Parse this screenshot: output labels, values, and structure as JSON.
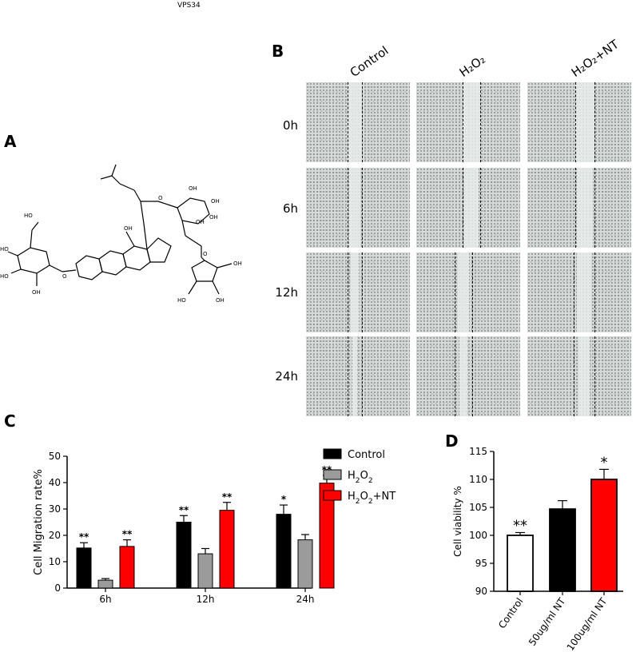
{
  "compound_name": "VPS34",
  "panels": {
    "a": "A",
    "b": "B",
    "c": "C",
    "d": "D"
  },
  "panel_b": {
    "columns": [
      "Control",
      "H₂O₂",
      "H₂O₂+NT"
    ],
    "rows": [
      "0h",
      "6h",
      "12h",
      "24h"
    ]
  },
  "chart_data": [
    {
      "type": "bar",
      "panel": "C",
      "categories": [
        "6h",
        "12h",
        "24h"
      ],
      "series": [
        {
          "name": "Control",
          "values": [
            15.2,
            25.0,
            28.0
          ],
          "errors": [
            2.0,
            2.5,
            3.5
          ],
          "color": "#000000",
          "significance": [
            "**",
            "**",
            "*"
          ]
        },
        {
          "name": "H2O2",
          "values": [
            3.0,
            13.0,
            18.3
          ],
          "errors": [
            0.6,
            2.0,
            2.0
          ],
          "color": "#9b9b9b",
          "significance": [
            "",
            "",
            ""
          ]
        },
        {
          "name": "H2O2+NT",
          "values": [
            15.8,
            29.5,
            39.8
          ],
          "errors": [
            2.5,
            3.0,
            3.0
          ],
          "color": "#ff0000",
          "significance": [
            "**",
            "**",
            "**"
          ]
        }
      ],
      "ylabel": "Cell Migration rate%",
      "ylim": [
        0,
        50
      ],
      "yticks": [
        0,
        10,
        20,
        30,
        40,
        50
      ],
      "legend": "right"
    },
    {
      "type": "bar",
      "panel": "D",
      "categories": [
        "Control",
        "50ug/ml NT",
        "100ug/ml NT"
      ],
      "values": [
        100,
        104.7,
        110.0
      ],
      "errors": [
        0.5,
        1.5,
        1.8
      ],
      "colors": [
        "#ffffff",
        "#000000",
        "#ff0000"
      ],
      "significance": [
        "**",
        "",
        "*"
      ],
      "ylabel": "Cell viability %",
      "ylim": [
        90,
        115
      ],
      "yticks": [
        90,
        95,
        100,
        105,
        110,
        115
      ]
    }
  ]
}
